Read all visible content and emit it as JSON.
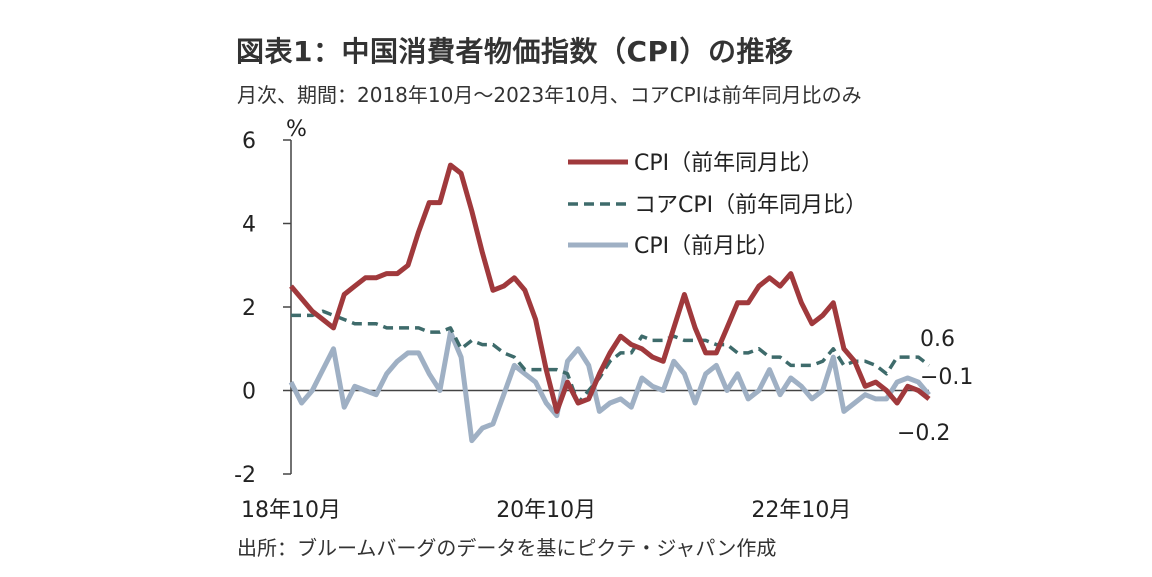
{
  "title": "図表1：中国消費者物価指数（CPI）の推移",
  "subtitle": "月次、期間：2018年10月～2023年10月、コアCPIは前年同月比のみ",
  "source": "出所：ブルームバーグのデータを基にピクテ・ジャパン作成",
  "colors": {
    "cpi_yoy": "#A0393C",
    "core_yoy": "#3E6B6B",
    "cpi_mom": "#9FB0C4",
    "axis": "#444444"
  },
  "chart_data": {
    "type": "line",
    "unit_label": "%",
    "ylim": [
      -2,
      6
    ],
    "yticks": [
      "6",
      "4",
      "2",
      "0",
      "-2"
    ],
    "xtick_labels": [
      "18年10月",
      "20年10月",
      "22年10月"
    ],
    "legend_position": "top-center",
    "grid": false,
    "x": [
      "2018-10",
      "2018-11",
      "2018-12",
      "2019-01",
      "2019-02",
      "2019-03",
      "2019-04",
      "2019-05",
      "2019-06",
      "2019-07",
      "2019-08",
      "2019-09",
      "2019-10",
      "2019-11",
      "2019-12",
      "2020-01",
      "2020-02",
      "2020-03",
      "2020-04",
      "2020-05",
      "2020-06",
      "2020-07",
      "2020-08",
      "2020-09",
      "2020-10",
      "2020-11",
      "2020-12",
      "2021-01",
      "2021-02",
      "2021-03",
      "2021-04",
      "2021-05",
      "2021-06",
      "2021-07",
      "2021-08",
      "2021-09",
      "2021-10",
      "2021-11",
      "2021-12",
      "2022-01",
      "2022-02",
      "2022-03",
      "2022-04",
      "2022-05",
      "2022-06",
      "2022-07",
      "2022-08",
      "2022-09",
      "2022-10",
      "2022-11",
      "2022-12",
      "2023-01",
      "2023-02",
      "2023-03",
      "2023-04",
      "2023-05",
      "2023-06",
      "2023-07",
      "2023-08",
      "2023-09",
      "2023-10"
    ],
    "series": [
      {
        "name": "CPI（前年同月比）",
        "key": "cpi_yoy",
        "dash": false,
        "values": [
          2.5,
          2.2,
          1.9,
          1.7,
          1.5,
          2.3,
          2.5,
          2.7,
          2.7,
          2.8,
          2.8,
          3.0,
          3.8,
          4.5,
          4.5,
          5.4,
          5.2,
          4.3,
          3.3,
          2.4,
          2.5,
          2.7,
          2.4,
          1.7,
          0.5,
          -0.5,
          0.2,
          -0.3,
          -0.2,
          0.4,
          0.9,
          1.3,
          1.1,
          1.0,
          0.8,
          0.7,
          1.5,
          2.3,
          1.5,
          0.9,
          0.9,
          1.5,
          2.1,
          2.1,
          2.5,
          2.7,
          2.5,
          2.8,
          2.1,
          1.6,
          1.8,
          2.1,
          1.0,
          0.7,
          0.1,
          0.2,
          0.0,
          -0.3,
          0.1,
          0.0,
          -0.2
        ]
      },
      {
        "name": "コアCPI（前年同月比）",
        "key": "core_yoy",
        "dash": true,
        "values": [
          1.8,
          1.8,
          1.8,
          1.9,
          1.8,
          1.7,
          1.6,
          1.6,
          1.6,
          1.5,
          1.5,
          1.5,
          1.5,
          1.4,
          1.4,
          1.5,
          1.0,
          1.2,
          1.1,
          1.1,
          0.9,
          0.8,
          0.5,
          0.5,
          0.5,
          0.5,
          0.4,
          -0.3,
          0.0,
          0.3,
          0.7,
          0.9,
          0.9,
          1.3,
          1.2,
          1.2,
          1.3,
          1.2,
          1.2,
          1.2,
          1.1,
          1.1,
          0.9,
          0.9,
          1.0,
          0.8,
          0.8,
          0.6,
          0.6,
          0.6,
          0.7,
          1.0,
          0.6,
          0.7,
          0.7,
          0.6,
          0.4,
          0.8,
          0.8,
          0.8,
          0.6
        ]
      },
      {
        "name": "CPI（前月比）",
        "key": "cpi_mom",
        "dash": false,
        "values": [
          0.2,
          -0.3,
          0.0,
          0.5,
          1.0,
          -0.4,
          0.1,
          0.0,
          -0.1,
          0.4,
          0.7,
          0.9,
          0.9,
          0.4,
          0.0,
          1.4,
          0.8,
          -1.2,
          -0.9,
          -0.8,
          -0.1,
          0.6,
          0.4,
          0.2,
          -0.3,
          -0.6,
          0.7,
          1.0,
          0.6,
          -0.5,
          -0.3,
          -0.2,
          -0.4,
          0.3,
          0.1,
          0.0,
          0.7,
          0.4,
          -0.3,
          0.4,
          0.6,
          0.0,
          0.4,
          -0.2,
          0.0,
          0.5,
          -0.1,
          0.3,
          0.1,
          -0.2,
          0.0,
          0.8,
          -0.5,
          -0.3,
          -0.1,
          -0.2,
          -0.2,
          0.2,
          0.3,
          0.2,
          -0.1
        ]
      }
    ],
    "annotations": [
      "0.6",
      "−0.1",
      "−0.2"
    ]
  }
}
